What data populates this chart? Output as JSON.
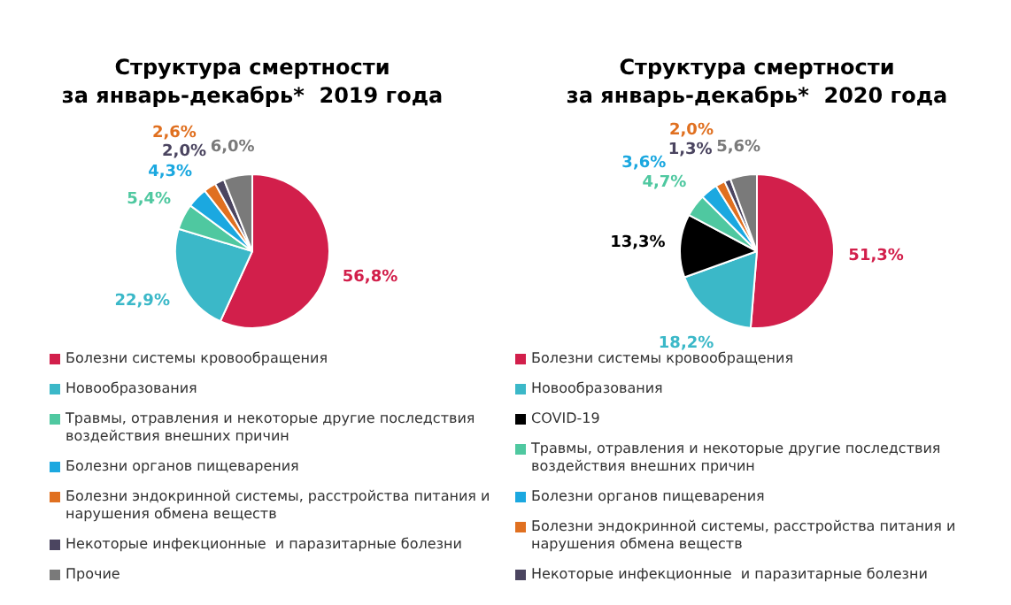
{
  "chart_data": [
    {
      "type": "pie",
      "title": "Структура смертности\nза январь-декабрь*  2019 года",
      "categories": [
        "Болезни системы кровообращения",
        "Новообразования",
        "Травмы, отравления и некоторые другие последствия воздействия внешних причин",
        "Болезни органов пищеварения",
        "Болезни эндокринной системы, расстройства питания и нарушения обмена веществ",
        "Некоторые инфекционные  и паразитарные болезни",
        "Прочие"
      ],
      "values": [
        56.8,
        22.9,
        5.4,
        4.3,
        2.6,
        2.0,
        6.0
      ],
      "colors": [
        "#d21f4b",
        "#3bb8c8",
        "#4fc8a0",
        "#1ba8e0",
        "#e07020",
        "#4b4560",
        "#7a7a7a"
      ],
      "value_labels": [
        "56,8%",
        "22,9%",
        "5,4%",
        "4,3%",
        "2,6%",
        "2,0%",
        "6,0%"
      ],
      "legend": "bottom"
    },
    {
      "type": "pie",
      "title": "Структура смертности\nза январь-декабрь*  2020 года",
      "categories": [
        "Болезни системы кровообращения",
        "Новообразования",
        "COVID-19",
        "Травмы, отравления и некоторые другие последствия воздействия внешних причин",
        "Болезни органов пищеварения",
        "Болезни эндокринной системы, расстройства питания и нарушения обмена веществ",
        "Некоторые инфекционные  и паразитарные болезни",
        null
      ],
      "values": [
        51.3,
        18.2,
        13.3,
        4.7,
        3.6,
        2.0,
        1.3,
        5.6
      ],
      "colors": [
        "#d21f4b",
        "#3bb8c8",
        "#000000",
        "#4fc8a0",
        "#1ba8e0",
        "#e07020",
        "#4b4560",
        "#7a7a7a"
      ],
      "value_labels": [
        "51,3%",
        "18,2%",
        "13,3%",
        "4,7%",
        "3,6%",
        "2,0%",
        "1,3%",
        "5,6%"
      ],
      "legend": "bottom"
    }
  ]
}
